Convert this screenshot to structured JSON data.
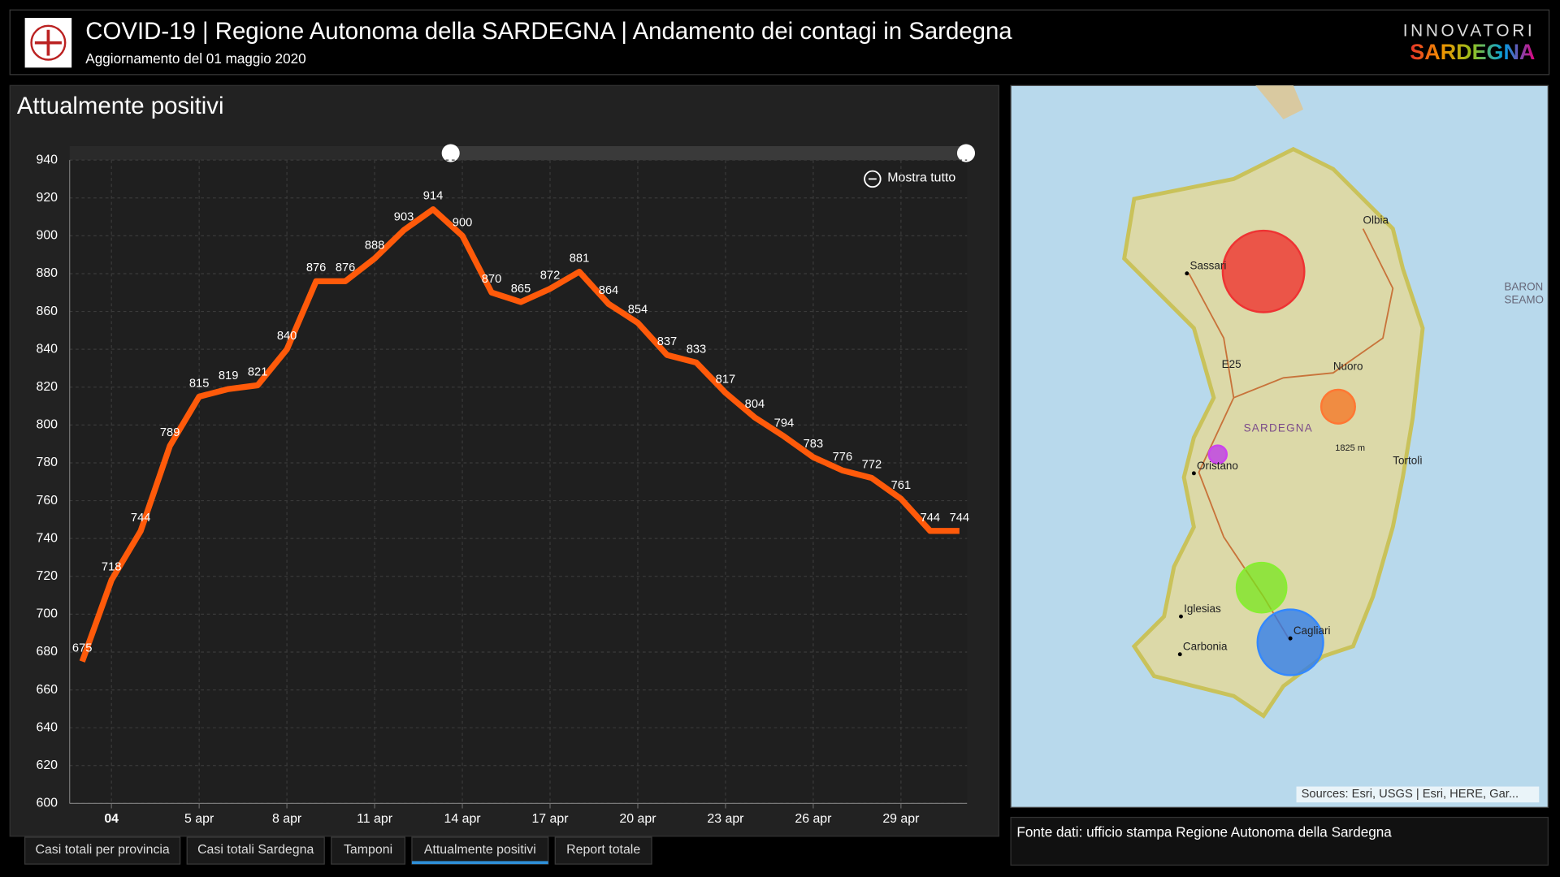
{
  "header": {
    "title": "COVID-19 | Regione Autonoma della SARDEGNA | Andamento dei contagi in Sardegna",
    "subtitle": "Aggiornamento del 01 maggio 2020",
    "brand_top": "INNOVATORI",
    "brand_bottom": "SARDEGNA"
  },
  "chart_data": {
    "type": "line",
    "title": "Attualmente positivi",
    "x": [
      1,
      2,
      3,
      4,
      5,
      6,
      7,
      8,
      9,
      10,
      11,
      12,
      13,
      14,
      15,
      16,
      17,
      18,
      19,
      20,
      21,
      22,
      23,
      24,
      25,
      26,
      27,
      28,
      29,
      30,
      31
    ],
    "series": [
      {
        "name": "Attualmente positivi",
        "color": "#ff5a0a",
        "values": [
          675,
          718,
          744,
          789,
          815,
          819,
          821,
          840,
          876,
          876,
          888,
          903,
          914,
          900,
          870,
          865,
          872,
          881,
          864,
          854,
          837,
          833,
          817,
          804,
          794,
          783,
          776,
          772,
          761,
          744,
          744
        ]
      }
    ],
    "xlim": [
      0.57,
      31.26
    ],
    "ylim": [
      600,
      940
    ],
    "yticks": [
      600,
      620,
      640,
      660,
      680,
      700,
      720,
      740,
      760,
      780,
      800,
      820,
      840,
      860,
      880,
      900,
      920,
      940
    ],
    "xticks": [
      {
        "value": 2,
        "label": "04"
      },
      {
        "value": 5,
        "label": "5 apr"
      },
      {
        "value": 8,
        "label": "8 apr"
      },
      {
        "value": 11,
        "label": "11 apr"
      },
      {
        "value": 14,
        "label": "14 apr"
      },
      {
        "value": 17,
        "label": "17 apr"
      },
      {
        "value": 20,
        "label": "20 apr"
      },
      {
        "value": 23,
        "label": "23 apr"
      },
      {
        "value": 26,
        "label": "26 apr"
      },
      {
        "value": 29,
        "label": "29 apr"
      }
    ],
    "grid": true,
    "zoom_button": "Mostra tutto"
  },
  "map": {
    "labels": [
      "Olbia",
      "Sassari",
      "Nuoro",
      "SARDEGNA",
      "1825 m",
      "Oristano",
      "Tortolì",
      "Iglesias",
      "Carbonia",
      "Cagliari",
      "E25",
      "BARON",
      "SEAMO"
    ],
    "attribution": "Sources: Esri, USGS | Esri, HERE, Gar..."
  },
  "source_note": "Fonte dati: ufficio stampa Regione Autonoma della Sardegna",
  "tabs": [
    "Casi totali per provincia",
    "Casi totali Sardegna",
    "Tamponi",
    "Attualmente positivi",
    "Report totale"
  ],
  "active_tab": 3
}
